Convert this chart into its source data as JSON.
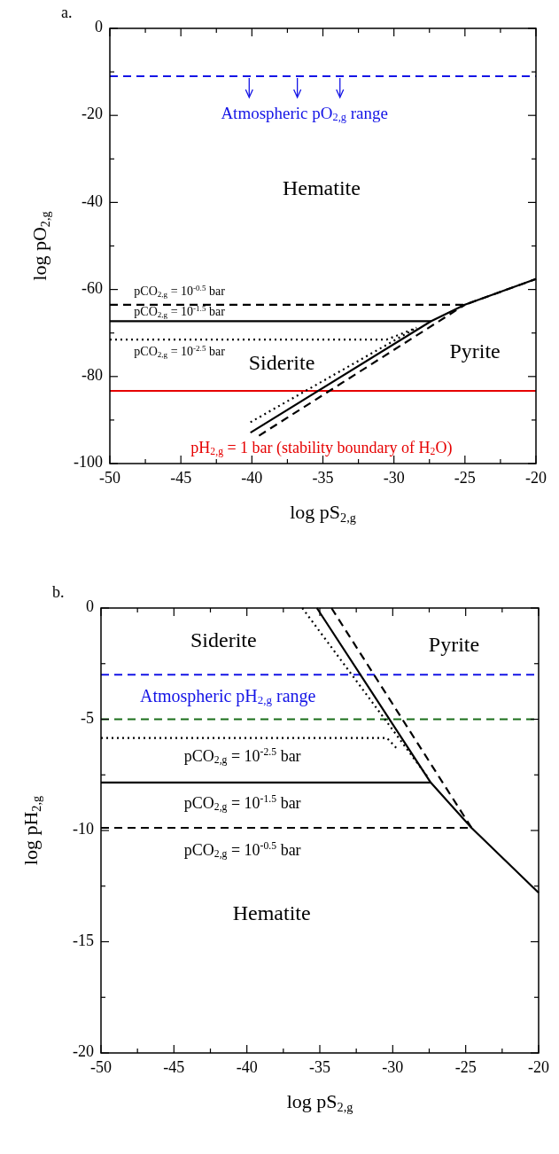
{
  "chart_data": [
    {
      "type": "line",
      "title": "a.",
      "xlabel": "log pS$_{2,g}$",
      "ylabel": "log pO$_{2,g}$",
      "xlim": [
        -50,
        -20
      ],
      "ylim": [
        -100,
        0
      ],
      "xticks": [
        -50,
        {
          "value": -47.5,
          "label": null
        },
        -45,
        {
          "value": -42.5,
          "label": null
        },
        -40,
        {
          "value": -37.5,
          "label": null
        },
        -35,
        {
          "value": -32.5,
          "label": null
        },
        -30,
        {
          "value": -27.5,
          "label": null
        },
        -25,
        {
          "value": -22.5,
          "label": null
        },
        -20
      ],
      "yticks": [
        -100,
        {
          "value": -90,
          "label": null
        },
        -80,
        {
          "value": -70,
          "label": null
        },
        -60,
        {
          "value": -50,
          "label": null
        },
        -40,
        {
          "value": -30,
          "label": null
        },
        -20,
        {
          "value": -10,
          "label": null
        },
        0
      ],
      "series": [
        {
          "color": "#000000",
          "line_style": "dashed",
          "x": [
            -50,
            -25,
            -20
          ],
          "values": [
            -63.5,
            -63.5,
            -57.6
          ]
        },
        {
          "color": "#000000",
          "line_style": "dashed",
          "x": [
            -39.5,
            -25
          ],
          "values": [
            -93.6,
            -63.5
          ]
        },
        {
          "color": "#000000",
          "line_style": "solid",
          "x": [
            -50,
            -27.4,
            -25,
            -20
          ],
          "values": [
            -67.3,
            -67.3,
            -63.5,
            -57.6
          ]
        },
        {
          "color": "#000000",
          "line_style": "solid",
          "x": [
            -40.1,
            -27.4
          ],
          "values": [
            -92.9,
            -67.3
          ]
        },
        {
          "color": "#000000",
          "line_style": "dotted",
          "x": [
            -50,
            -30.5,
            -28.4
          ],
          "values": [
            -71.5,
            -71.5,
            -68.8
          ]
        },
        {
          "color": "#000000",
          "line_style": "dotted",
          "x": [
            -40.1,
            -28.4
          ],
          "values": [
            -90.5,
            -68.8
          ]
        }
      ],
      "ref_lines": [
        {
          "axis": "y",
          "value": -11,
          "color": "#1414e6",
          "line_style": "dashed",
          "label": "Atmospheric pO$_{2,g}$ range"
        },
        {
          "axis": "y",
          "value": -83.3,
          "color": "#e60000",
          "line_style": "solid"
        }
      ],
      "annotations": [
        "pH$_{2,g}$ = 1 bar (stability boundary of H$_{2}$O)",
        "Hematite",
        "pCO$_{2,g}$ = 10$^{-0.5}$ bar",
        "pCO$_{2,g}$ = 10$^{-1.5}$ bar",
        "pCO$_{2,g}$ = 10$^{-2.5}$ bar",
        "Siderite",
        "Pyrite"
      ]
    },
    {
      "type": "line",
      "title": "b.",
      "xlabel": "log pS$_{2,g}$",
      "ylabel": "log pH$_{2,g}$",
      "xlim": [
        -50,
        -20
      ],
      "ylim": [
        -20,
        0
      ],
      "xticks": [
        -50,
        {
          "value": -47.5,
          "label": null
        },
        -45,
        {
          "value": -42.5,
          "label": null
        },
        -40,
        {
          "value": -37.5,
          "label": null
        },
        -35,
        {
          "value": -32.5,
          "label": null
        },
        -30,
        {
          "value": -27.5,
          "label": null
        },
        -25,
        {
          "value": -22.5,
          "label": null
        },
        -20
      ],
      "yticks": [
        -20,
        {
          "value": -17.5,
          "label": null
        },
        -15,
        {
          "value": -12.5,
          "label": null
        },
        -10,
        {
          "value": -7.5,
          "label": null
        },
        -5,
        {
          "value": -2.5,
          "label": null
        },
        0
      ],
      "series": [
        {
          "color": "#000000",
          "line_style": "dashed",
          "x": [
            -50,
            -24.6
          ],
          "values": [
            -9.88,
            -9.88
          ]
        },
        {
          "color": "#000000",
          "line_style": "dashed",
          "x": [
            -34.2,
            -24.6
          ],
          "values": [
            0,
            -9.88
          ]
        },
        {
          "color": "#000000",
          "line_style": "solid",
          "x": [
            -50,
            -27.4
          ],
          "values": [
            -7.84,
            -7.84
          ]
        },
        {
          "color": "#000000",
          "line_style": "solid",
          "x": [
            -35.2,
            -27.4,
            -24.6,
            -20
          ],
          "values": [
            0,
            -7.84,
            -9.88,
            -12.8
          ]
        },
        {
          "color": "#000000",
          "line_style": "dotted",
          "x": [
            -50,
            -30.4,
            -29.6
          ],
          "values": [
            -5.84,
            -5.84,
            -6.4
          ]
        },
        {
          "color": "#000000",
          "line_style": "dotted",
          "x": [
            -36.2,
            -27.6
          ],
          "values": [
            0,
            -7.6
          ]
        }
      ],
      "ref_lines": [
        {
          "axis": "y",
          "value": -3,
          "color": "#1414e6",
          "line_style": "dashed",
          "label": "Atmospheric pH$_{2,g}$ range"
        },
        {
          "axis": "y",
          "value": -5,
          "color": "#1a6e1a",
          "line_style": "dashed"
        }
      ],
      "annotations": [
        "Siderite",
        "Pyrite",
        "pCO$_{2,g}$ =  10$^{-2.5}$ bar",
        "pCO$_{2,g}$ =  10$^{-1.5}$ bar",
        "pCO$_{2,g}$ =  10$^{-0.5}$ bar",
        "Hematite"
      ]
    }
  ]
}
